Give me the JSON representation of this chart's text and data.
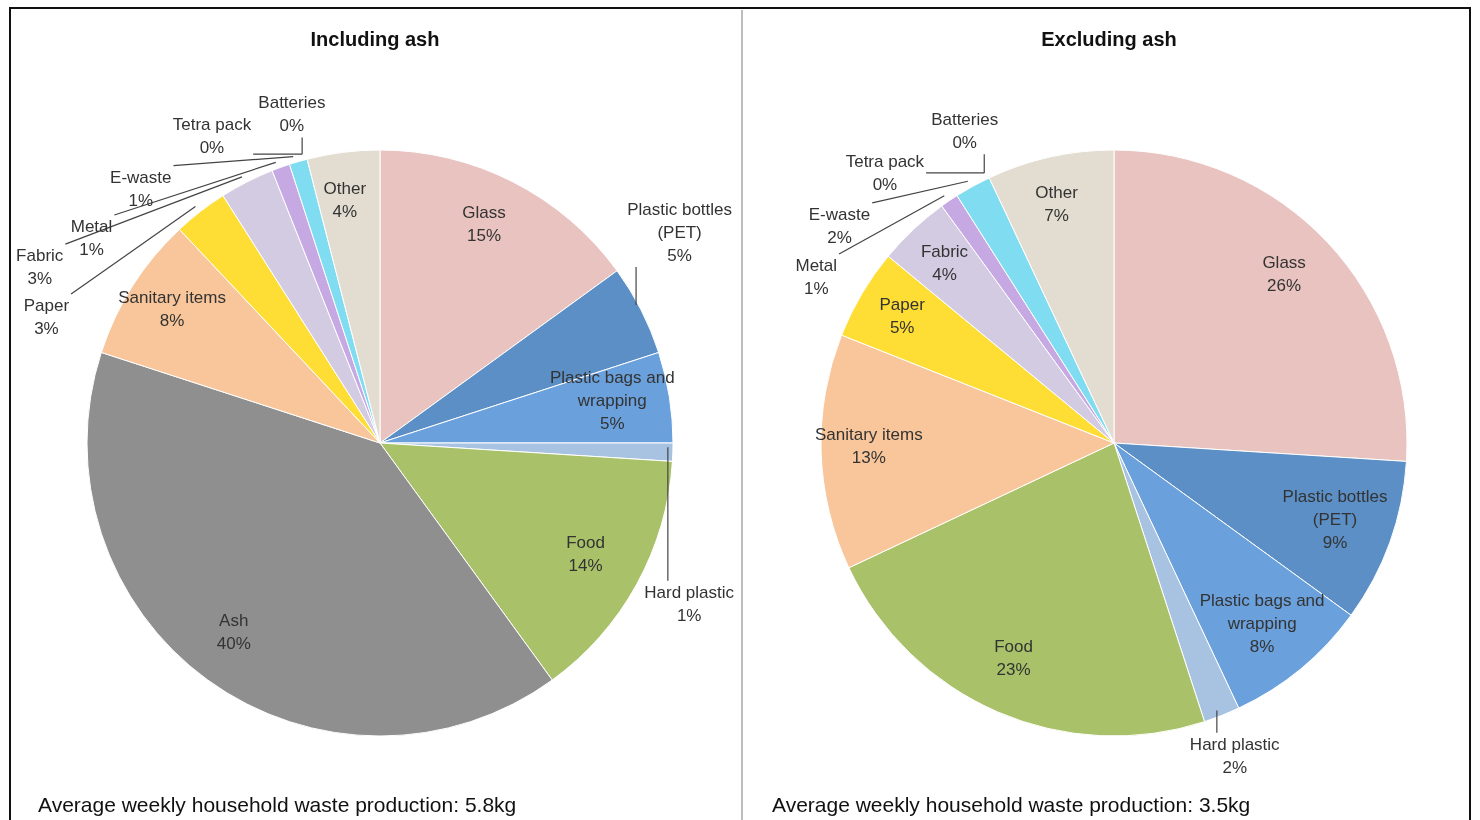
{
  "chart_data": [
    {
      "type": "pie",
      "title": "Including ash",
      "categories": [
        "Glass",
        "Plastic bottles (PET)",
        "Plastic bags and wrapping",
        "Hard plastic",
        "Food",
        "Ash",
        "Sanitary items",
        "Paper",
        "Fabric",
        "Metal",
        "E-waste",
        "Tetra pack",
        "Batteries",
        "Other"
      ],
      "values": [
        15,
        5,
        5,
        1,
        14,
        40,
        8,
        3,
        3,
        1,
        1,
        0,
        0,
        4
      ],
      "colors": [
        "#e8c3bf",
        "#5b8fc5",
        "#6aa0dc",
        "#a8c2e2",
        "#a9c26a",
        "#8f8f8f",
        "#f8c69a",
        "#fedd35",
        "#d3cbe2",
        "#c6a8e2",
        "#80dcf0",
        "#f8b87c",
        "#c0d0e8",
        "#e2ddd0"
      ],
      "value_labels": [
        "15%",
        "5%",
        "5%",
        "1%",
        "14%",
        "40%",
        "8%",
        "3%",
        "3%",
        "1%",
        "1%",
        "0%",
        "0%",
        "4%"
      ],
      "annotations": [
        "Average weekly household waste production: 5.8kg"
      ]
    },
    {
      "type": "pie",
      "title": "Excluding ash",
      "categories": [
        "Glass",
        "Plastic bottles (PET)",
        "Plastic bags and wrapping",
        "Hard plastic",
        "Food",
        "Sanitary items",
        "Paper",
        "Fabric",
        "Metal",
        "E-waste",
        "Tetra pack",
        "Batteries",
        "Other"
      ],
      "values": [
        26,
        9,
        8,
        2,
        23,
        13,
        5,
        4,
        1,
        2,
        0,
        0,
        7
      ],
      "colors": [
        "#e8c3bf",
        "#5b8fc5",
        "#6aa0dc",
        "#a8c2e2",
        "#a9c26a",
        "#f8c69a",
        "#fedd35",
        "#d3cbe2",
        "#c6a8e2",
        "#80dcf0",
        "#f8b87c",
        "#c0d0e8",
        "#e2ddd0"
      ],
      "value_labels": [
        "26%",
        "9%",
        "8%",
        "2%",
        "23%",
        "13%",
        "5%",
        "4%",
        "1%",
        "2%",
        "0%",
        "0%",
        "7%"
      ],
      "annotations": [
        "Average weekly household waste production: 3.5kg"
      ]
    }
  ]
}
